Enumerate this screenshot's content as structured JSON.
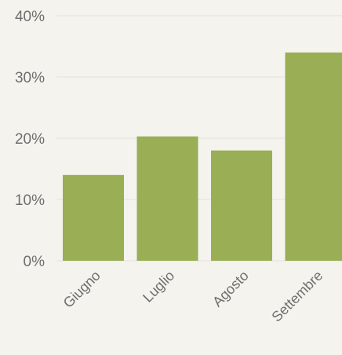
{
  "chart_data": {
    "type": "bar",
    "categories": [
      "Giugno",
      "Luglio",
      "Agosto",
      "Settembre"
    ],
    "values": [
      14,
      20.3,
      18,
      34
    ],
    "ylim": [
      0,
      40
    ],
    "yticks": [
      "0%",
      "10%",
      "20%",
      "30%",
      "40%"
    ],
    "ytick_values": [
      0,
      10,
      20,
      30,
      40
    ],
    "bar_color": "#9aae55",
    "grid": true,
    "legend": "none"
  }
}
